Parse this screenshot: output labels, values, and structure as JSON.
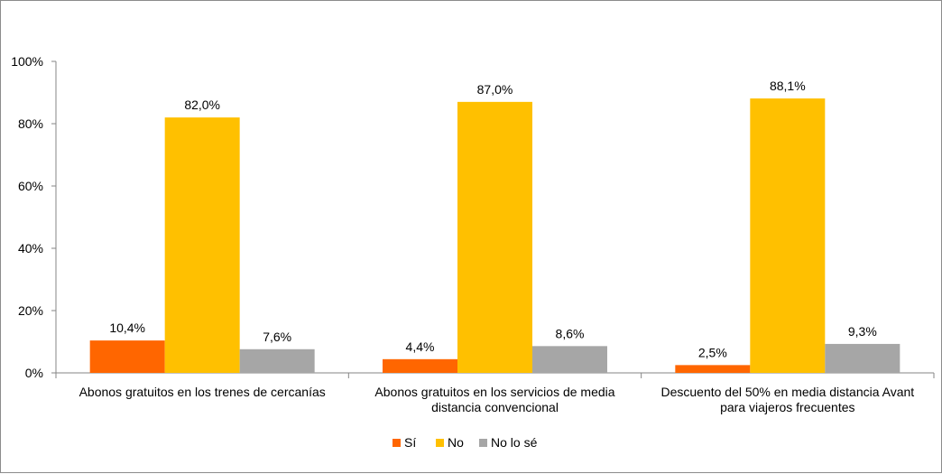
{
  "chart_data": {
    "type": "bar",
    "categories": [
      [
        "Abonos gratuitos en los trenes de cercanías"
      ],
      [
        "Abonos gratuitos en los servicios de media",
        "distancia convencional"
      ],
      [
        "Descuento del 50% en media distancia Avant",
        "para viajeros frecuentes"
      ]
    ],
    "series": [
      {
        "name": "Sí",
        "color": "#ff6600",
        "values": [
          10.4,
          4.4,
          2.5
        ],
        "labels": [
          "10,4%",
          "4,4%",
          "2,5%"
        ]
      },
      {
        "name": "No",
        "color": "#ffc000",
        "values": [
          82.0,
          87.0,
          88.1
        ],
        "labels": [
          "82,0%",
          "87,0%",
          "88,1%"
        ]
      },
      {
        "name": "No lo sé",
        "color": "#a6a6a6",
        "values": [
          7.6,
          8.6,
          9.3
        ],
        "labels": [
          "7,6%",
          "8,6%",
          "9,3%"
        ]
      }
    ],
    "ylim": [
      0,
      100
    ],
    "yticks": [
      0,
      20,
      40,
      60,
      80,
      100
    ],
    "ytick_labels": [
      "0%",
      "20%",
      "40%",
      "60%",
      "80%",
      "100%"
    ],
    "legend_position": "bottom",
    "grid": false
  }
}
